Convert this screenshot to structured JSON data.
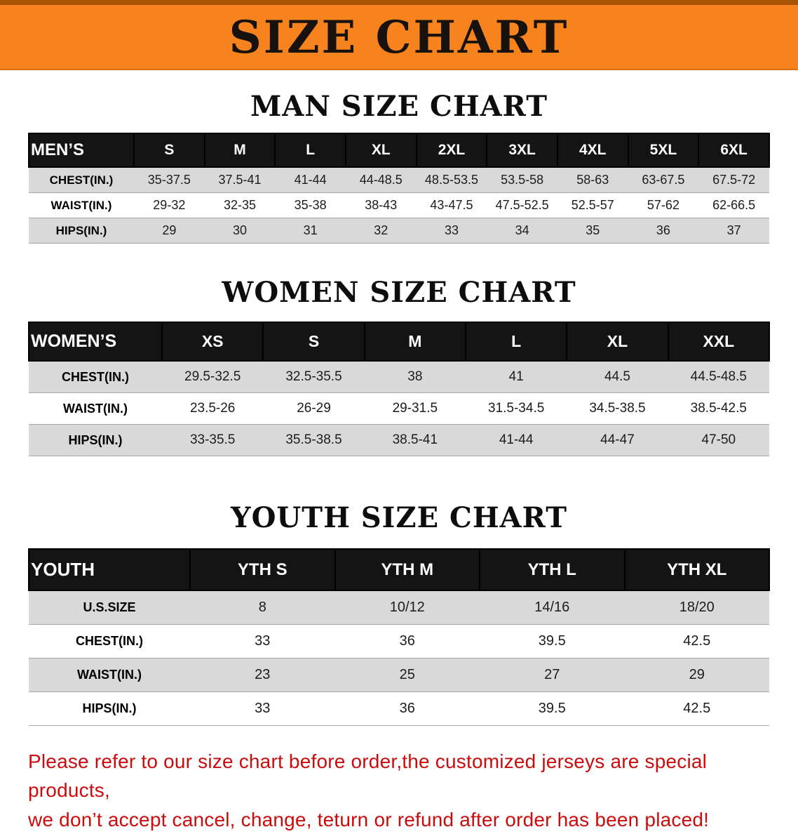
{
  "banner": {
    "title": "SIZE CHART"
  },
  "colors": {
    "banner_bg": "#F6831D",
    "banner_edge": "#A85606",
    "header_bg": "#141414",
    "row_stripe": "#D9D9D9",
    "footer_text": "#CC0C0C"
  },
  "sections": [
    {
      "id": "men",
      "heading": "MAN SIZE CHART",
      "table": {
        "header": [
          "MEN’S",
          "S",
          "M",
          "L",
          "XL",
          "2XL",
          "3XL",
          "4XL",
          "5XL",
          "6XL"
        ],
        "rows": [
          [
            "CHEST(IN.)",
            "35-37.5",
            "37.5-41",
            "41-44",
            "44-48.5",
            "48.5-53.5",
            "53.5-58",
            "58-63",
            "63-67.5",
            "67.5-72"
          ],
          [
            "WAIST(IN.)",
            "29-32",
            "32-35",
            "35-38",
            "38-43",
            "43-47.5",
            "47.5-52.5",
            "52.5-57",
            "57-62",
            "62-66.5"
          ],
          [
            "HIPS(IN.)",
            "29",
            "30",
            "31",
            "32",
            "33",
            "34",
            "35",
            "36",
            "37"
          ]
        ]
      }
    },
    {
      "id": "women",
      "heading": "WOMEN SIZE CHART",
      "table": {
        "header": [
          "WOMEN’S",
          "XS",
          "S",
          "M",
          "L",
          "XL",
          "XXL"
        ],
        "rows": [
          [
            "CHEST(IN.)",
            "29.5-32.5",
            "32.5-35.5",
            "38",
            "41",
            "44.5",
            "44.5-48.5"
          ],
          [
            "WAIST(IN.)",
            "23.5-26",
            "26-29",
            "29-31.5",
            "31.5-34.5",
            "34.5-38.5",
            "38.5-42.5"
          ],
          [
            "HIPS(IN.)",
            "33-35.5",
            "35.5-38.5",
            "38.5-41",
            "41-44",
            "44-47",
            "47-50"
          ]
        ]
      }
    },
    {
      "id": "youth",
      "heading": "YOUTH SIZE CHART",
      "table": {
        "header": [
          "YOUTH",
          "YTH S",
          "YTH M",
          "YTH L",
          "YTH XL"
        ],
        "rows": [
          [
            "U.S.SIZE",
            "8",
            "10/12",
            "14/16",
            "18/20"
          ],
          [
            "CHEST(IN.)",
            "33",
            "36",
            "39.5",
            "42.5"
          ],
          [
            "WAIST(IN.)",
            "23",
            "25",
            "27",
            "29"
          ],
          [
            "HIPS(IN.)",
            "33",
            "36",
            "39.5",
            "42.5"
          ]
        ]
      }
    }
  ],
  "disclaimer": {
    "line1": "Please refer to our size chart before order,the customized jerseys are special products,",
    "line2": "we don’t accept cancel, change, teturn or refund after order has been placed!"
  }
}
